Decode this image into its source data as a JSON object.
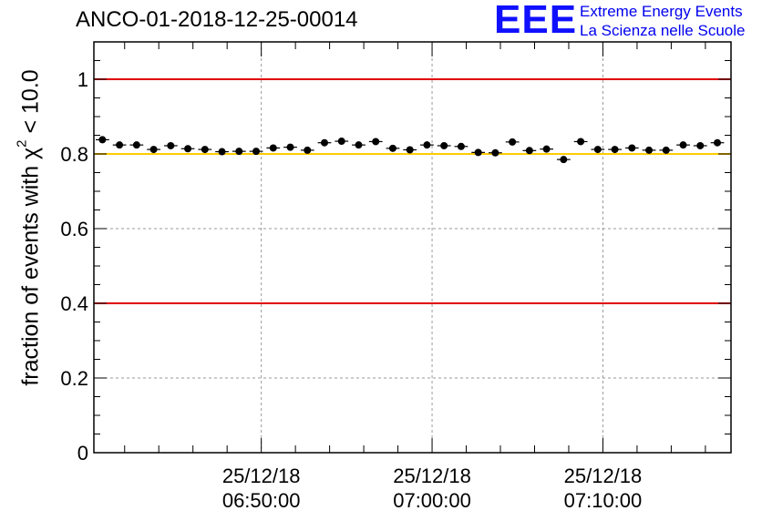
{
  "chart_data": {
    "type": "scatter",
    "title": "ANCO-01-2018-12-25-00014",
    "ylabel_prefix": "fraction of events with χ",
    "ylabel_sup": "2",
    "ylabel_suffix": " < 10.0",
    "xlabel": "",
    "ylim": [
      0,
      1.1
    ],
    "yticks": [
      0,
      0.2,
      0.4,
      0.6,
      0.8,
      1
    ],
    "ytick_labels": [
      "0",
      "0.2",
      "0.4",
      "0.6",
      "0.8",
      "1"
    ],
    "xlim_minutes": [
      0,
      37.3
    ],
    "xticks_minutes": [
      9.8,
      19.8,
      29.8
    ],
    "xtick_dates": [
      "25/12/18",
      "25/12/18",
      "25/12/18"
    ],
    "xtick_times": [
      "06:50:00",
      "07:00:00",
      "07:10:00"
    ],
    "grid": true,
    "reference_lines": [
      {
        "y": 1.0,
        "color": "#e00000"
      },
      {
        "y": 0.8,
        "color": "#ffcc00"
      },
      {
        "y": 0.4,
        "color": "#e00000"
      }
    ],
    "bin_width_minutes": 1,
    "x_minutes": [
      0.5,
      1.5,
      2.5,
      3.5,
      4.5,
      5.5,
      6.5,
      7.5,
      8.5,
      9.5,
      10.5,
      11.5,
      12.5,
      13.5,
      14.5,
      15.5,
      16.5,
      17.5,
      18.5,
      19.5,
      20.5,
      21.5,
      22.5,
      23.5,
      24.5,
      25.5,
      26.5,
      27.5,
      28.5,
      29.5,
      30.5,
      31.5,
      32.5,
      33.5,
      34.5,
      35.5,
      36.5
    ],
    "values": [
      0.838,
      0.824,
      0.824,
      0.812,
      0.822,
      0.814,
      0.812,
      0.806,
      0.807,
      0.807,
      0.816,
      0.818,
      0.81,
      0.83,
      0.834,
      0.824,
      0.833,
      0.815,
      0.811,
      0.824,
      0.822,
      0.82,
      0.804,
      0.803,
      0.832,
      0.809,
      0.813,
      0.785,
      0.833,
      0.812,
      0.812,
      0.816,
      0.81,
      0.81,
      0.824,
      0.822,
      0.83
    ],
    "errors": [
      0.007,
      0.006,
      0.006,
      0.006,
      0.006,
      0.006,
      0.006,
      0.006,
      0.006,
      0.006,
      0.006,
      0.006,
      0.006,
      0.006,
      0.006,
      0.006,
      0.006,
      0.006,
      0.006,
      0.006,
      0.006,
      0.006,
      0.006,
      0.006,
      0.006,
      0.006,
      0.006,
      0.007,
      0.006,
      0.006,
      0.006,
      0.006,
      0.006,
      0.006,
      0.006,
      0.006,
      0.006
    ]
  },
  "logo": {
    "mark": "EEE",
    "line1": "Extreme Energy Events",
    "line2": "La Scienza nelle Scuole",
    "color": "#1010ff"
  }
}
